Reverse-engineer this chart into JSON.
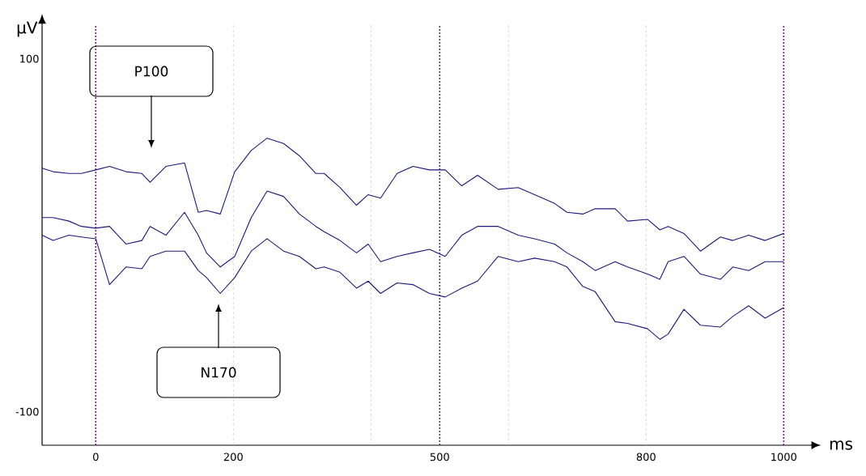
{
  "chart_data": {
    "type": "line",
    "xlabel": "ms",
    "ylabel": "µV",
    "xlim": [
      -78,
      1038
    ],
    "ylim": [
      -119,
      119
    ],
    "xticks": [
      0,
      200,
      500,
      800,
      1000
    ],
    "yticks": [
      -100,
      100
    ],
    "x": [
      -78,
      -62,
      -39,
      -21,
      0,
      20,
      44,
      67,
      79,
      102,
      129,
      149,
      161,
      181,
      202,
      226,
      249,
      273,
      296,
      320,
      332,
      355,
      379,
      396,
      414,
      438,
      461,
      485,
      508,
      532,
      555,
      585,
      614,
      638,
      667,
      685,
      708,
      726,
      755,
      773,
      802,
      820,
      832,
      855,
      879,
      908,
      926,
      949,
      973,
      1000
    ],
    "series": [
      {
        "color": "#1a1a80",
        "values": [
          38,
          36,
          35,
          35,
          37,
          39,
          36,
          35,
          30,
          39,
          41,
          13,
          14,
          12,
          36,
          48,
          55,
          52,
          45,
          35,
          35,
          27,
          17,
          23,
          21,
          35,
          39,
          37,
          37,
          28,
          34,
          26,
          27,
          23,
          18,
          13,
          12,
          15,
          15,
          8,
          9,
          3,
          5,
          1,
          -9,
          -1,
          -3,
          0,
          -3,
          1
        ]
      },
      {
        "color": "#1a1a80",
        "values": [
          10,
          10,
          8,
          5,
          4,
          5,
          -5,
          -3,
          5,
          0,
          13,
          0,
          -10,
          -18,
          -12,
          10,
          25,
          22,
          12,
          5,
          2,
          -3,
          -10,
          -5,
          -15,
          -12,
          -10,
          -8,
          -12,
          0,
          5,
          5,
          0,
          -2,
          -5,
          -10,
          -15,
          -20,
          -15,
          -18,
          -22,
          -25,
          -15,
          -12,
          -22,
          -25,
          -18,
          -20,
          -15,
          -15
        ]
      },
      {
        "color": "#1a1a80",
        "values": [
          0,
          -3,
          0,
          -1,
          -2,
          -28,
          -18,
          -19,
          -12,
          -9,
          -9,
          -20,
          -24,
          -33,
          -24,
          -9,
          -2,
          -9,
          -12,
          -19,
          -18,
          -21,
          -30,
          -26,
          -33,
          -27,
          -28,
          -33,
          -35,
          -30,
          -26,
          -12,
          -15,
          -13,
          -15,
          -18,
          -29,
          -32,
          -49,
          -50,
          -53,
          -59,
          -56,
          -42,
          -51,
          -52,
          -46,
          -40,
          -47,
          -41
        ]
      }
    ],
    "ref_lines": [
      {
        "axis": "x",
        "value": 0,
        "color": "#7a1f7a",
        "line_style": "dotted"
      },
      {
        "axis": "x",
        "value": 500,
        "color": "#7a1f7a",
        "line_style": "dotted"
      },
      {
        "axis": "x",
        "value": 1000,
        "color": "#7a1f7a",
        "line_style": "dotted"
      },
      {
        "axis": "x",
        "value": 200,
        "color": "#bbbbbb",
        "line_style": "dashed"
      },
      {
        "axis": "x",
        "value": 400,
        "color": "#bbbbbb",
        "line_style": "dashed"
      },
      {
        "axis": "x",
        "value": 600,
        "color": "#bbbbbb",
        "line_style": "dashed"
      },
      {
        "axis": "x",
        "value": 800,
        "color": "#bbbbbb",
        "line_style": "dashed"
      }
    ],
    "annotations": [
      "P100",
      "N170"
    ]
  }
}
